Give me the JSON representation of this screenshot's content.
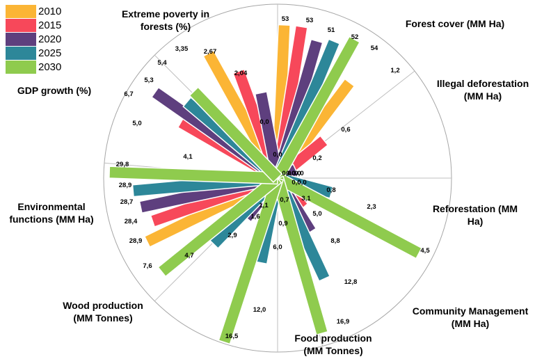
{
  "chart_data": {
    "type": "bar",
    "layout": "polar-radial",
    "categories": [
      "Forest cover (MM Ha)",
      "Illegal deforestation (MM Ha)",
      "Reforestation (MM Ha)",
      "Community Management (MM Ha)",
      "Food production (MM Tonnes)",
      "Wood production (MM Tonnes)",
      "Environmental functions (MM Ha)",
      "GDP growth (%)",
      "Extreme poverty in forests (%)"
    ],
    "series": [
      {
        "name": "2010",
        "color": "#FBB535",
        "values": [
          53,
          1.2,
          0.0,
          0.0,
          0.7,
          1.1,
          28.9,
          4.1,
          3.35
        ],
        "labels": [
          "53",
          "1,2",
          "0,0",
          "0,0",
          "0,7",
          "1,1",
          "28,9",
          "4,1",
          "3,35"
        ]
      },
      {
        "name": "2015",
        "color": "#F7485A",
        "values": [
          53,
          0.6,
          0.0,
          3.1,
          0.0,
          0.0,
          28.4,
          5.0,
          2.67
        ],
        "labels": [
          "53",
          "0,6",
          "0,0",
          "3,1",
          "",
          "",
          "28,4",
          "5,0",
          "2,67"
        ]
      },
      {
        "name": "2020",
        "color": "#5E3F7E",
        "values": [
          51,
          0.2,
          0.0,
          5.0,
          0.9,
          1.6,
          28.7,
          6.7,
          2.04
        ],
        "labels": [
          "51",
          "0,2",
          "0,0",
          "5,0",
          "0,9",
          "1,6",
          "28,7",
          "6,7",
          "2,04"
        ]
      },
      {
        "name": "2025",
        "color": "#2D8799",
        "values": [
          52,
          0.0,
          0.8,
          8.8,
          6.0,
          2.9,
          28.9,
          5.3,
          0.0
        ],
        "labels": [
          "52",
          "0,0",
          "0,8",
          "8,8",
          "6,0",
          "2,9",
          "28,9",
          "5,3",
          "0,0"
        ]
      },
      {
        "name": "2030",
        "color": "#8FCB4E",
        "values": [
          54,
          0.0,
          2.3,
          12.8,
          12.0,
          4.7,
          29.8,
          5.4,
          0.0
        ],
        "labels": [
          "54",
          "0,0",
          "2,3",
          "12,8",
          "12,0",
          "4,7",
          "29,8",
          "5,4",
          "0,0"
        ]
      }
    ],
    "extra_labels": [
      "4,5",
      "16,9",
      "16,5",
      "7,6"
    ],
    "legend": "top-left",
    "grid": true
  }
}
